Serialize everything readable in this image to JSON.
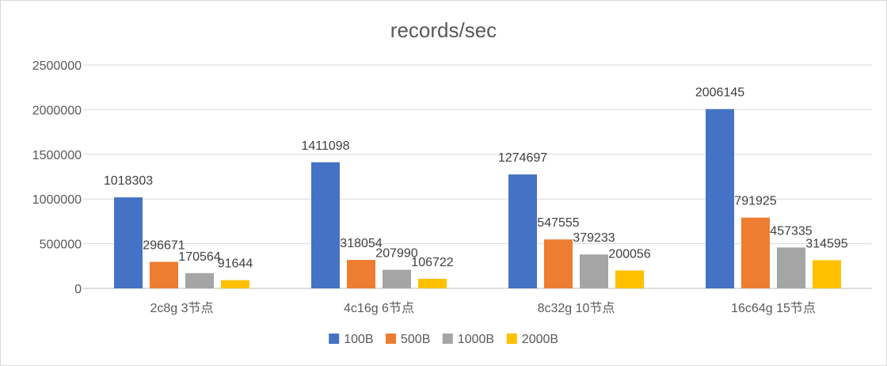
{
  "chart_data": {
    "type": "bar",
    "title": "records/sec",
    "xlabel": "",
    "ylabel": "",
    "categories": [
      "2c8g 3节点",
      "4c16g 6节点",
      "8c32g 10节点",
      "16c64g 15节点"
    ],
    "series": [
      {
        "name": "100B",
        "color": "#4472C4",
        "values": [
          1018303,
          1411098,
          1274697,
          2006145
        ]
      },
      {
        "name": "500B",
        "color": "#ED7D31",
        "values": [
          296671,
          318054,
          547555,
          791925
        ]
      },
      {
        "name": "1000B",
        "color": "#A5A5A5",
        "values": [
          170564,
          207990,
          379233,
          457335
        ]
      },
      {
        "name": "2000B",
        "color": "#FFC000",
        "values": [
          91644,
          106722,
          200056,
          314595
        ]
      }
    ],
    "ylim": [
      0,
      2500000
    ],
    "yticks": [
      0,
      500000,
      1000000,
      1500000,
      2000000,
      2500000
    ],
    "grid": true,
    "legend_position": "bottom",
    "data_labels": true
  }
}
